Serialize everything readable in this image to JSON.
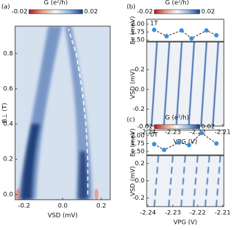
{
  "chart_data": [
    {
      "type": "heatmap",
      "panel_label": "(a)",
      "colorbar": {
        "label": "G (e²/h)",
        "clim": [
          -0.02,
          0.02
        ],
        "ticks": [
          -0.02,
          0.02
        ]
      },
      "xlabel": "VSD (mV)",
      "ylabel": "B⊥ (T)",
      "xlim": [
        -0.246,
        0.246
      ],
      "ylim": [
        -0.03,
        0.956
      ],
      "xticks": [
        -0.2,
        {
          "value": 0,
          "label": "0.0"
        },
        0.2
      ],
      "yticks": [
        {
          "value": 0,
          "label": "0.0"
        },
        0.2,
        0.4,
        0.6,
        0.8
      ],
      "linestyle": "dashed",
      "series": [
        {
          "color": "#ffffff",
          "x": [
            0.13,
            0.13,
            0.12,
            0.1,
            0.07,
            0.03
          ],
          "values": [
            0,
            0.2,
            0.4,
            0.6,
            0.8,
            0.94
          ]
        }
      ]
    },
    {
      "type": "line",
      "panel_label": "(b)",
      "annotation": "1T",
      "ylabel": "Ec (meV)",
      "xlim": [
        -2.2405,
        -2.2095
      ],
      "ylim": [
        1.46,
        2.15
      ],
      "yticks": [
        {
          "value": 1.5,
          "label": "1.50"
        },
        1.75,
        {
          "value": 2,
          "label": "2.00"
        }
      ],
      "linestyle": "dashed",
      "series": [
        {
          "color": "#3b8ee0",
          "x": [
            -2.2375,
            -2.2325,
            -2.2265,
            -2.2225,
            -2.2165,
            -2.2125
          ],
          "values": [
            1.82,
            1.62,
            1.8,
            1.55,
            1.8,
            1.65
          ]
        }
      ]
    },
    {
      "type": "heatmap",
      "colorbar": {
        "label": "G (e²/h)",
        "clim": [
          -0.02,
          0.02
        ],
        "ticks": [
          -0.02,
          0.02
        ]
      },
      "xlabel": "VPG (V)",
      "ylabel": "VSD (mV)",
      "xlim": [
        -2.2405,
        -2.2095
      ],
      "ylim": [
        -0.37,
        0.48
      ],
      "xticks": [
        -2.24,
        -2.23,
        -2.22,
        -2.21
      ],
      "yticks": [
        -0.2,
        {
          "value": 0,
          "label": "0.0"
        },
        0.2
      ]
    },
    {
      "type": "line",
      "panel_label": "(c)",
      "annotation": "0T",
      "ylabel": "Ec (meV)",
      "xlim": [
        -2.2405,
        -2.2095
      ],
      "ylim": [
        1.39,
        2.17
      ],
      "yticks": [
        {
          "value": 1.5,
          "label": "1.50"
        },
        1.75,
        {
          "value": 2,
          "label": "2.00"
        }
      ],
      "linestyle": "dashed",
      "series": [
        {
          "color": "#3b8ee0",
          "x": [
            -2.2375,
            -2.2335,
            -2.2275,
            -2.2235,
            -2.2185,
            -2.2125
          ],
          "values": [
            1.73,
            1.55,
            1.78,
            1.7,
            2.08,
            1.75
          ]
        }
      ]
    },
    {
      "type": "heatmap",
      "colorbar": {
        "label": "G (e²/h)",
        "clim": [
          -0.02,
          0.02
        ],
        "ticks": [
          -0.02,
          0.02
        ]
      },
      "xlabel": "VPG (V)",
      "ylabel": "VSD (mV)",
      "xlim": [
        -2.2405,
        -2.2095
      ],
      "ylim": [
        -0.3,
        0.29
      ],
      "xticks": [
        -2.24,
        -2.23,
        -2.22,
        -2.21
      ],
      "yticks": [
        -0.2,
        {
          "value": 0,
          "label": "0.0"
        },
        0.2
      ]
    }
  ]
}
